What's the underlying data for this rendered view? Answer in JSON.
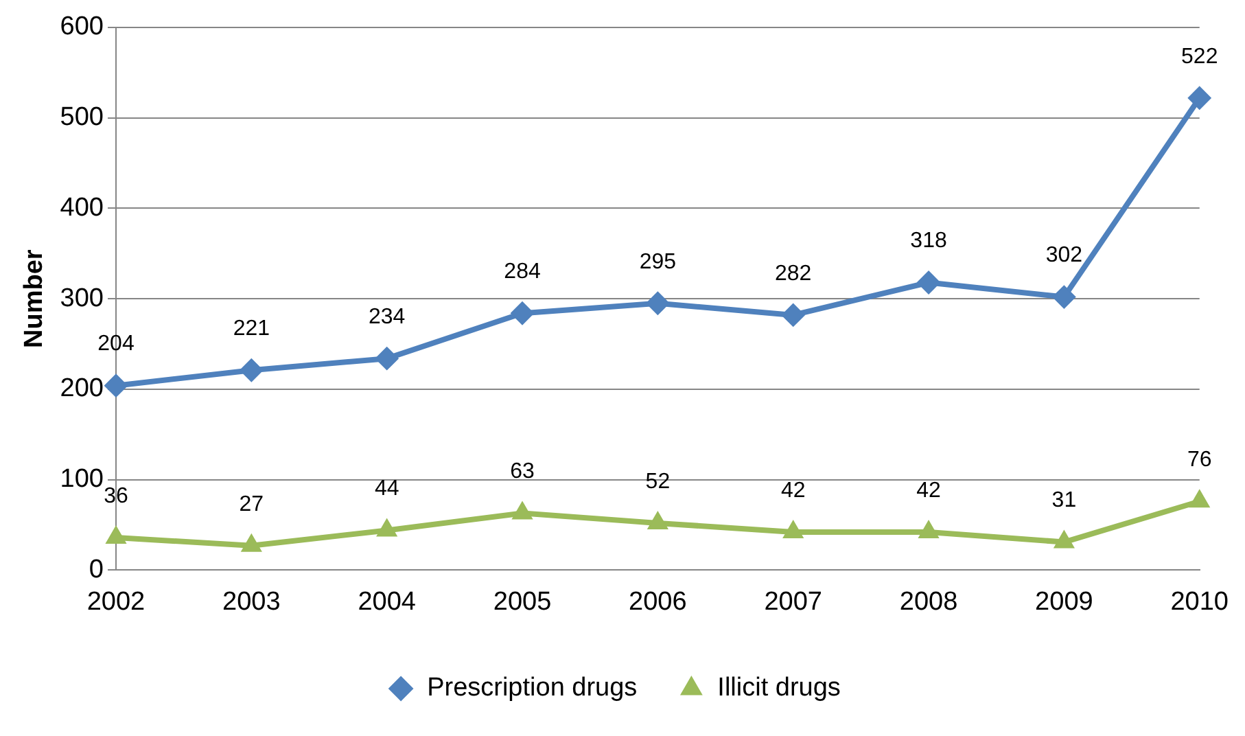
{
  "chart_data": {
    "type": "line",
    "ylabel": "Number",
    "categories": [
      "2002",
      "2003",
      "2004",
      "2005",
      "2006",
      "2007",
      "2008",
      "2009",
      "2010"
    ],
    "series": [
      {
        "name": "Prescription drugs",
        "color": "#4f81bd",
        "marker": "diamond",
        "values": [
          204,
          221,
          234,
          284,
          295,
          282,
          318,
          302,
          522
        ]
      },
      {
        "name": "Illicit drugs",
        "color": "#9bbb59",
        "marker": "triangle",
        "values": [
          36,
          27,
          44,
          63,
          52,
          42,
          42,
          31,
          76
        ]
      }
    ],
    "ylim": [
      0,
      600
    ],
    "yticks": [
      0,
      100,
      200,
      300,
      400,
      500,
      600
    ],
    "grid": "y",
    "legend": "bottom",
    "data_labels": true
  }
}
